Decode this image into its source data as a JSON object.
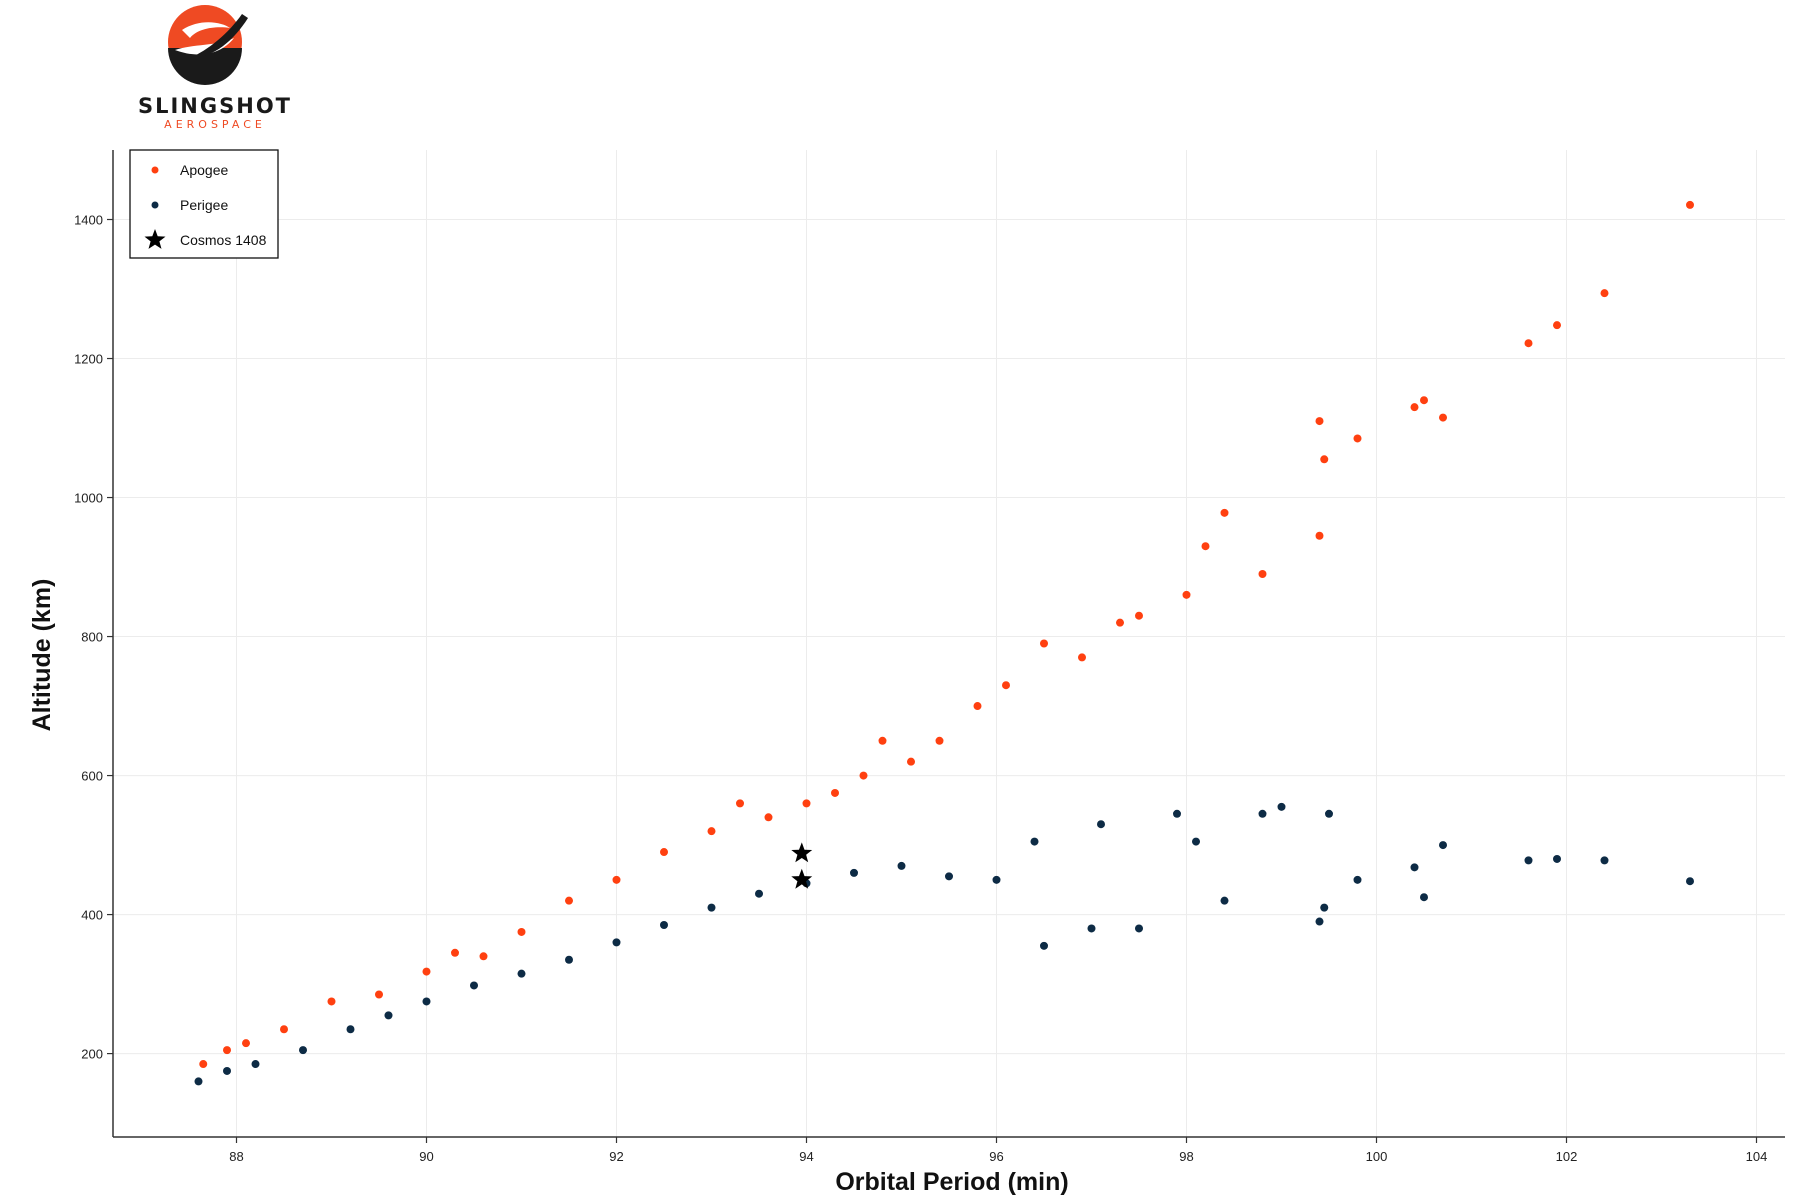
{
  "brand": {
    "name": "SLINGSHOT",
    "sub": "AEROSPACE",
    "colors": {
      "orange": "#ef4a23",
      "dark": "#1a1a1a"
    }
  },
  "chart_data": {
    "type": "scatter",
    "title": "",
    "xlabel": "Orbital Period (min)",
    "ylabel": "Altitude (km)",
    "xlim": [
      86.7,
      104.3
    ],
    "ylim": [
      80,
      1500
    ],
    "xticks": [
      88,
      90,
      92,
      94,
      96,
      98,
      100,
      102,
      104
    ],
    "yticks": [
      200,
      400,
      600,
      800,
      1000,
      1200,
      1400
    ],
    "grid": true,
    "legend": "top-left",
    "series": [
      {
        "name": "Apogee",
        "color": "#ff4010",
        "marker": "circle",
        "values": [
          [
            87.65,
            185
          ],
          [
            87.9,
            205
          ],
          [
            88.1,
            215
          ],
          [
            88.5,
            235
          ],
          [
            89.0,
            275
          ],
          [
            89.5,
            285
          ],
          [
            90.0,
            318
          ],
          [
            90.3,
            345
          ],
          [
            90.6,
            340
          ],
          [
            91.0,
            375
          ],
          [
            91.5,
            420
          ],
          [
            92.0,
            450
          ],
          [
            92.5,
            490
          ],
          [
            93.0,
            520
          ],
          [
            93.3,
            560
          ],
          [
            93.6,
            540
          ],
          [
            94.0,
            560
          ],
          [
            94.3,
            575
          ],
          [
            94.6,
            600
          ],
          [
            94.8,
            650
          ],
          [
            95.1,
            620
          ],
          [
            95.4,
            650
          ],
          [
            95.8,
            700
          ],
          [
            96.1,
            730
          ],
          [
            96.5,
            790
          ],
          [
            96.9,
            770
          ],
          [
            97.3,
            820
          ],
          [
            97.5,
            830
          ],
          [
            98.0,
            860
          ],
          [
            98.2,
            930
          ],
          [
            98.4,
            978
          ],
          [
            98.8,
            890
          ],
          [
            99.4,
            945
          ],
          [
            99.45,
            1055
          ],
          [
            99.4,
            1110
          ],
          [
            99.8,
            1085
          ],
          [
            100.4,
            1130
          ],
          [
            100.5,
            1140
          ],
          [
            100.7,
            1115
          ],
          [
            101.6,
            1222
          ],
          [
            101.9,
            1248
          ],
          [
            102.4,
            1294
          ],
          [
            103.3,
            1421
          ]
        ]
      },
      {
        "name": "Perigee",
        "color": "#0d2b45",
        "marker": "circle",
        "values": [
          [
            87.6,
            160
          ],
          [
            87.9,
            175
          ],
          [
            88.2,
            185
          ],
          [
            88.7,
            205
          ],
          [
            89.2,
            235
          ],
          [
            89.6,
            255
          ],
          [
            90.0,
            275
          ],
          [
            90.5,
            298
          ],
          [
            91.0,
            315
          ],
          [
            91.5,
            335
          ],
          [
            92.0,
            360
          ],
          [
            92.5,
            385
          ],
          [
            93.0,
            410
          ],
          [
            93.5,
            430
          ],
          [
            94.0,
            445
          ],
          [
            94.5,
            460
          ],
          [
            95.0,
            470
          ],
          [
            95.5,
            455
          ],
          [
            96.0,
            450
          ],
          [
            96.4,
            505
          ],
          [
            96.5,
            355
          ],
          [
            97.0,
            380
          ],
          [
            97.1,
            530
          ],
          [
            97.5,
            380
          ],
          [
            97.9,
            545
          ],
          [
            98.1,
            505
          ],
          [
            98.4,
            420
          ],
          [
            98.8,
            545
          ],
          [
            99.0,
            555
          ],
          [
            99.4,
            390
          ],
          [
            99.45,
            410
          ],
          [
            99.5,
            545
          ],
          [
            99.8,
            450
          ],
          [
            100.4,
            468
          ],
          [
            100.5,
            425
          ],
          [
            100.7,
            500
          ],
          [
            101.6,
            478
          ],
          [
            101.9,
            480
          ],
          [
            102.4,
            478
          ],
          [
            103.3,
            448
          ]
        ]
      },
      {
        "name": "Cosmos 1408",
        "color": "#000000",
        "marker": "star",
        "values": [
          [
            93.95,
            488
          ],
          [
            93.95,
            450
          ]
        ]
      }
    ]
  }
}
